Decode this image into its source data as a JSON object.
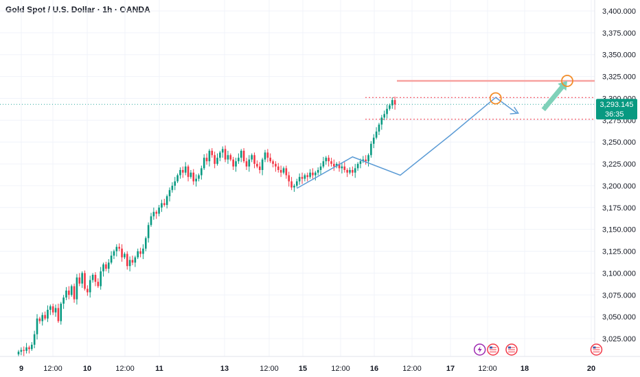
{
  "chart_data": {
    "type": "candlestick",
    "title": "Gold Spot / U.S. Dollar · 1h · OANDA",
    "y_ticks": [
      "3,400.000",
      "3,375.000",
      "3,350.000",
      "3,325.000",
      "3,300.000",
      "3,275.000",
      "3,250.000",
      "3,225.000",
      "3,200.000",
      "3,175.000",
      "3,150.000",
      "3,125.000",
      "3,100.000",
      "3,075.000",
      "3,050.000",
      "3,025.000"
    ],
    "y_tick_values": [
      3400,
      3375,
      3350,
      3325,
      3300,
      3275,
      3250,
      3225,
      3200,
      3175,
      3150,
      3125,
      3100,
      3075,
      3050,
      3025
    ],
    "ylim": [
      3006,
      3406
    ],
    "x_ticks": [
      {
        "label": "9",
        "bold": true
      },
      {
        "label": "12:00",
        "bold": false
      },
      {
        "label": "10",
        "bold": true
      },
      {
        "label": "12:00",
        "bold": false
      },
      {
        "label": "11",
        "bold": true
      },
      {
        "label": "13",
        "bold": true
      },
      {
        "label": "12:00",
        "bold": false
      },
      {
        "label": "15",
        "bold": true
      },
      {
        "label": "12:00",
        "bold": false
      },
      {
        "label": "16",
        "bold": true
      },
      {
        "label": "12:00",
        "bold": false
      },
      {
        "label": "17",
        "bold": true
      },
      {
        "label": "12:00",
        "bold": false
      },
      {
        "label": "18",
        "bold": true
      },
      {
        "label": "20",
        "bold": true
      }
    ],
    "current_price": 3293.145,
    "current_price_label": "3,293.145",
    "countdown": "36:35",
    "closes": [
      3010,
      3012,
      3011,
      3015,
      3013,
      3018,
      3030,
      3048,
      3045,
      3052,
      3048,
      3058,
      3062,
      3055,
      3060,
      3045,
      3065,
      3072,
      3080,
      3075,
      3085,
      3070,
      3095,
      3088,
      3100,
      3082,
      3078,
      3092,
      3098,
      3090,
      3085,
      3102,
      3110,
      3105,
      3112,
      3120,
      3125,
      3130,
      3128,
      3118,
      3122,
      3108,
      3115,
      3112,
      3118,
      3125,
      3122,
      3128,
      3140,
      3155,
      3165,
      3170,
      3168,
      3175,
      3180,
      3178,
      3188,
      3195,
      3200,
      3205,
      3212,
      3218,
      3215,
      3222,
      3210,
      3215,
      3205,
      3208,
      3212,
      3220,
      3232,
      3228,
      3240,
      3235,
      3225,
      3232,
      3238,
      3242,
      3230,
      3235,
      3230,
      3222,
      3228,
      3232,
      3240,
      3228,
      3222,
      3230,
      3235,
      3225,
      3222,
      3218,
      3230,
      3238,
      3232,
      3228,
      3225,
      3222,
      3218,
      3215,
      3220,
      3212,
      3205,
      3198,
      3200,
      3205,
      3210,
      3208,
      3212,
      3210,
      3215,
      3212,
      3215,
      3218,
      3222,
      3228,
      3232,
      3228,
      3225,
      3222,
      3225,
      3220,
      3222,
      3218,
      3215,
      3218,
      3215,
      3220,
      3225,
      3228,
      3230,
      3228,
      3235,
      3248,
      3255,
      3262,
      3270,
      3278,
      3282,
      3288,
      3292,
      3298,
      3293
    ],
    "annotations": {
      "dotted_levels": [
        3301,
        3276
      ],
      "target_level": 3320,
      "zigzag": [
        [
          105,
          3197
        ],
        [
          126,
          3233
        ],
        [
          144,
          3212
        ],
        [
          163,
          3258
        ],
        [
          180,
          3301
        ],
        [
          188,
          3283
        ]
      ],
      "circles": [
        [
          180,
          3300
        ],
        [
          207,
          3320
        ]
      ],
      "arrow_up": {
        "from": [
          198,
          3287
        ],
        "to": [
          207,
          3320
        ]
      },
      "event_icons": [
        174,
        179,
        186,
        218
      ]
    }
  }
}
